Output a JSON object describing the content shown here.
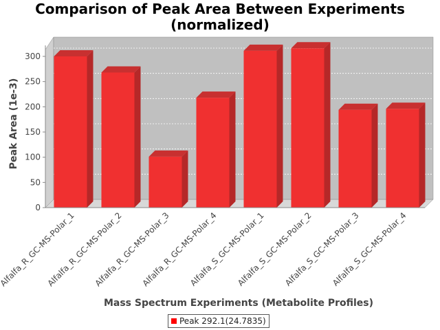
{
  "colors": {
    "bar_front": "#f03030",
    "bar_side": "#b52828",
    "bar_top": "#c83030",
    "plot_back": "#c0c0c0",
    "plot_floor": "#d8d8d8",
    "legend_swatch": "#ff0000"
  },
  "chart_data": {
    "type": "bar",
    "title": "Comparison of Peak Area Between Experiments (normalized)",
    "title_lines": [
      "Comparison of Peak Area Between Experiments",
      "(normalized)"
    ],
    "xlabel": "Mass Spectrum Experiments (Metabolite Profiles)",
    "ylabel": "Peak Area (1e-3)",
    "ylim": [
      0,
      330
    ],
    "yticks": [
      0,
      50,
      100,
      150,
      200,
      250,
      300
    ],
    "grid": true,
    "legend_position": "bottom",
    "categories": [
      "Alfalfa_R_GC-MS-Polar_1",
      "Alfalfa_R_GC-MS-Polar_2",
      "Alfalfa_R_GC-MS-Polar_3",
      "Alfalfa_R_GC-MS-Polar_4",
      "Alfalfa_S_GC-MS-Polar_1",
      "Alfalfa_S_GC-MS-Polar_2",
      "Alfalfa_S_GC-MS-Polar_3",
      "Alfalfa_S_GC-MS-Polar_4"
    ],
    "series": [
      {
        "name": "Peak 292.1(24.7835)",
        "values": [
          300,
          268,
          101,
          218,
          311,
          316,
          194,
          196
        ]
      }
    ]
  }
}
